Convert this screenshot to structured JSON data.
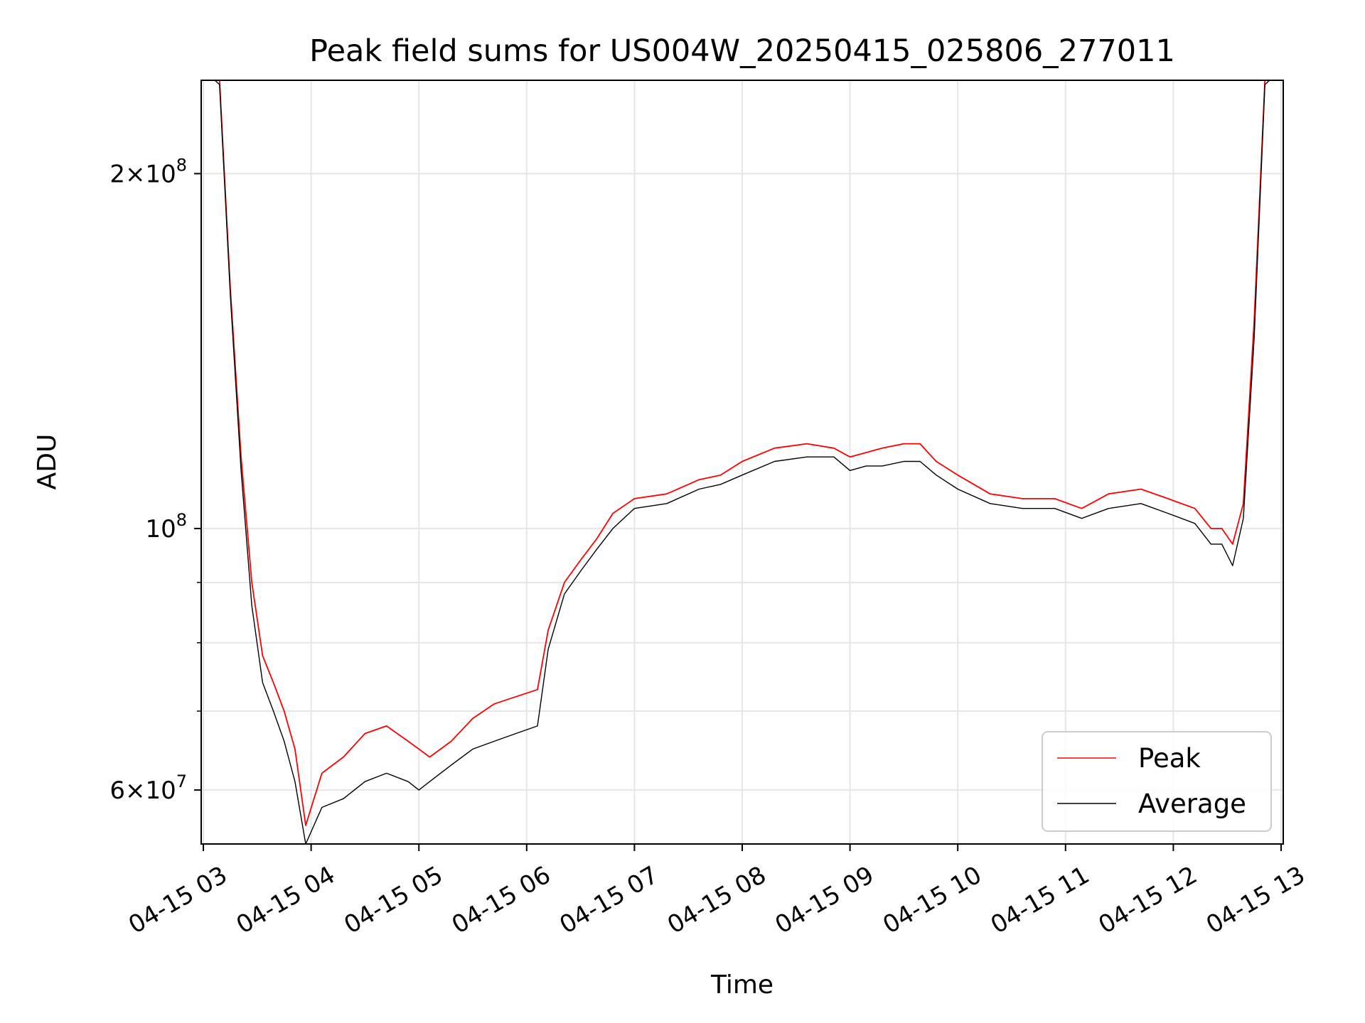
{
  "chart_data": {
    "type": "line",
    "title": "Peak field sums for US004W_20250415_025806_277011",
    "xlabel": "Time",
    "ylabel": "ADU",
    "x_range_hours": [
      2.98,
      13.02
    ],
    "ylim": [
      54000000,
      240000000
    ],
    "y_scale": "log",
    "grid": true,
    "legend_placement": "lower-right",
    "x_tick_labels": [
      "04-15 03",
      "04-15 04",
      "04-15 05",
      "04-15 06",
      "04-15 07",
      "04-15 08",
      "04-15 09",
      "04-15 10",
      "04-15 11",
      "04-15 12",
      "04-15 13"
    ],
    "x_tick_hours": [
      3,
      4,
      5,
      6,
      7,
      8,
      9,
      10,
      11,
      12,
      13
    ],
    "y_major_ticks": [
      {
        "value": 200000000,
        "mantissa": "2",
        "exponent": "8"
      },
      {
        "value": 100000000,
        "mantissa": "",
        "exponent": "8"
      },
      {
        "value": 60000000,
        "mantissa": "6",
        "exponent": "7"
      }
    ],
    "y_minor_ticks": [
      70000000,
      80000000,
      90000000,
      300000000
    ],
    "series": [
      {
        "name": "Peak",
        "color": "#ff0000",
        "x_hours": [
          3.0,
          3.15,
          3.25,
          3.35,
          3.45,
          3.55,
          3.65,
          3.75,
          3.85,
          3.95,
          4.1,
          4.3,
          4.5,
          4.7,
          4.9,
          5.0,
          5.1,
          5.3,
          5.5,
          5.7,
          5.9,
          6.1,
          6.2,
          6.35,
          6.5,
          6.65,
          6.8,
          7.0,
          7.3,
          7.6,
          7.8,
          8.0,
          8.3,
          8.6,
          8.85,
          9.0,
          9.15,
          9.3,
          9.5,
          9.65,
          9.8,
          10.0,
          10.3,
          10.6,
          10.9,
          11.15,
          11.4,
          11.7,
          11.95,
          12.2,
          12.35,
          12.45,
          12.55,
          12.65,
          12.75,
          12.85,
          13.0
        ],
        "values": [
          245000000,
          240000000,
          160000000,
          115000000,
          90000000,
          78000000,
          74000000,
          70000000,
          65000000,
          56000000,
          62000000,
          64000000,
          67000000,
          68000000,
          66000000,
          65000000,
          64000000,
          66000000,
          69000000,
          71000000,
          72000000,
          73000000,
          82000000,
          90000000,
          94000000,
          98000000,
          103000000,
          106000000,
          107000000,
          110000000,
          111000000,
          114000000,
          117000000,
          118000000,
          117000000,
          115000000,
          116000000,
          117000000,
          118000000,
          118000000,
          114000000,
          111000000,
          107000000,
          106000000,
          106000000,
          104000000,
          107000000,
          108000000,
          106000000,
          104000000,
          100000000,
          100000000,
          97000000,
          105000000,
          150000000,
          240000000,
          245000000
        ]
      },
      {
        "name": "Average",
        "color": "#000000",
        "x_hours": [
          3.0,
          3.15,
          3.25,
          3.35,
          3.45,
          3.55,
          3.65,
          3.75,
          3.85,
          3.95,
          4.1,
          4.3,
          4.5,
          4.7,
          4.9,
          5.0,
          5.1,
          5.3,
          5.5,
          5.7,
          5.9,
          6.1,
          6.2,
          6.35,
          6.5,
          6.65,
          6.8,
          7.0,
          7.3,
          7.6,
          7.8,
          8.0,
          8.3,
          8.6,
          8.85,
          9.0,
          9.15,
          9.3,
          9.5,
          9.65,
          9.8,
          10.0,
          10.3,
          10.6,
          10.9,
          11.15,
          11.4,
          11.7,
          11.95,
          12.2,
          12.35,
          12.45,
          12.55,
          12.65,
          12.75,
          12.85,
          13.0
        ],
        "values": [
          245000000,
          238000000,
          158000000,
          112000000,
          86000000,
          74000000,
          70000000,
          66000000,
          61000000,
          54000000,
          58000000,
          59000000,
          61000000,
          62000000,
          61000000,
          60000000,
          61000000,
          63000000,
          65000000,
          66000000,
          67000000,
          68000000,
          79000000,
          88000000,
          92000000,
          96000000,
          100000000,
          104000000,
          105000000,
          108000000,
          109000000,
          111000000,
          114000000,
          115000000,
          115000000,
          112000000,
          113000000,
          113000000,
          114000000,
          114000000,
          111000000,
          108000000,
          105000000,
          104000000,
          104000000,
          102000000,
          104000000,
          105000000,
          103000000,
          101000000,
          97000000,
          97000000,
          93000000,
          102000000,
          145000000,
          238000000,
          245000000
        ]
      }
    ]
  }
}
